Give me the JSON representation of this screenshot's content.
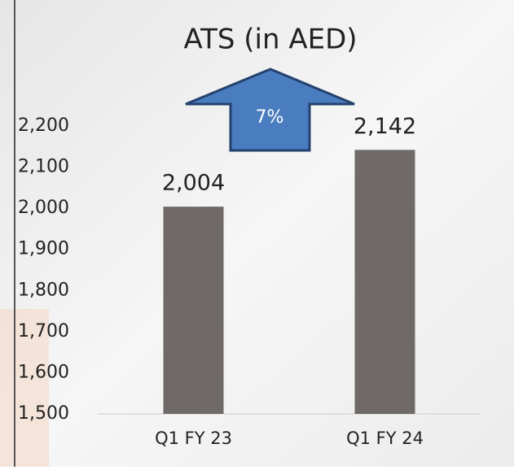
{
  "chart_data": {
    "type": "bar",
    "title": "ATS (in AED)",
    "categories": [
      "Q1 FY 23",
      "Q1 FY 24"
    ],
    "values": [
      2004,
      2142
    ],
    "value_labels": [
      "2,004",
      "2,142"
    ],
    "color": "#6f6a68",
    "ylim": [
      1500,
      2200
    ],
    "yticks": [
      {
        "value": 1500,
        "label": "1,500"
      },
      {
        "value": 1600,
        "label": "1,600"
      },
      {
        "value": 1700,
        "label": "1,700"
      },
      {
        "value": 1800,
        "label": "1,800"
      },
      {
        "value": 1900,
        "label": "1,900"
      },
      {
        "value": 2000,
        "label": "2,000"
      },
      {
        "value": 2100,
        "label": "2,100"
      },
      {
        "value": 2200,
        "label": "2,200"
      }
    ],
    "annotations": [
      "7%"
    ],
    "grid": false
  }
}
